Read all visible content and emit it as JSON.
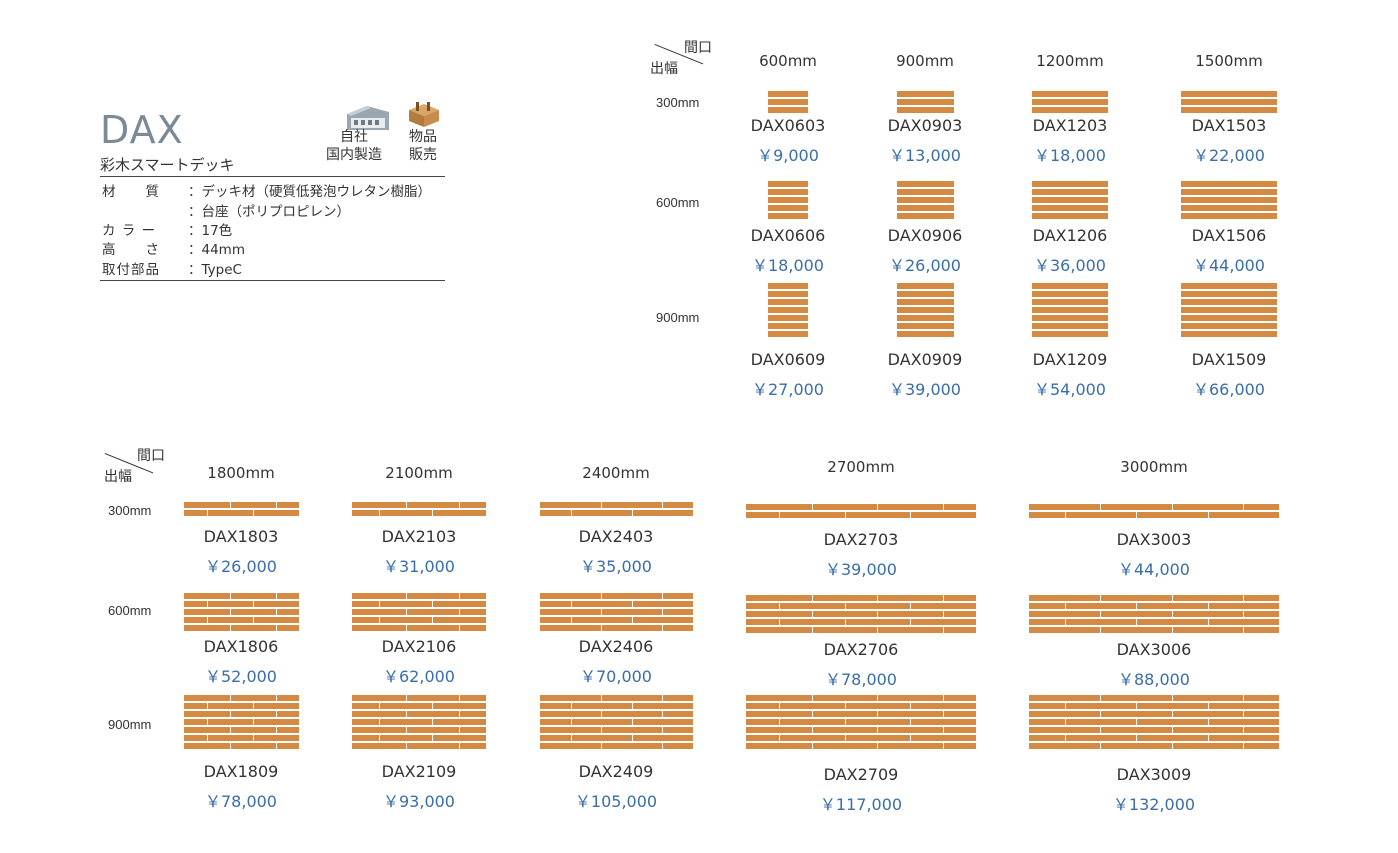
{
  "product": {
    "name": "DAX",
    "subtitle": "彩木スマートデッキ",
    "badges": {
      "factory": [
        "自社",
        "国内製造"
      ],
      "goods": [
        "物品",
        "販売"
      ]
    },
    "specs": [
      {
        "key": "材　　質",
        "value": "：デッキ材（硬質低発泡ウレタン樹脂）"
      },
      {
        "key": "",
        "value": "：台座（ポリプロピレン）"
      },
      {
        "key": "カ ラ ー",
        "value": "：17色"
      },
      {
        "key": "高　　さ",
        "value": "：44mm"
      },
      {
        "key": "取付部品",
        "value": "：TypeC"
      }
    ]
  },
  "table_header": {
    "width_label": "間口",
    "depth_label": "出幅"
  },
  "table1": {
    "columns": [
      "600mm",
      "900mm",
      "1200mm",
      "1500mm"
    ],
    "rows": [
      {
        "depth": "300mm",
        "items": [
          {
            "code": "DAX0603",
            "price": "￥9,000"
          },
          {
            "code": "DAX0903",
            "price": "￥13,000"
          },
          {
            "code": "DAX1203",
            "price": "￥18,000"
          },
          {
            "code": "DAX1503",
            "price": "￥22,000"
          }
        ]
      },
      {
        "depth": "600mm",
        "items": [
          {
            "code": "DAX0606",
            "price": "￥18,000"
          },
          {
            "code": "DAX0906",
            "price": "￥26,000"
          },
          {
            "code": "DAX1206",
            "price": "￥36,000"
          },
          {
            "code": "DAX1506",
            "price": "￥44,000"
          }
        ]
      },
      {
        "depth": "900mm",
        "items": [
          {
            "code": "DAX0609",
            "price": "￥27,000"
          },
          {
            "code": "DAX0909",
            "price": "￥39,000"
          },
          {
            "code": "DAX1209",
            "price": "￥54,000"
          },
          {
            "code": "DAX1509",
            "price": "￥66,000"
          }
        ]
      }
    ]
  },
  "table2": {
    "columns": [
      "1800mm",
      "2100mm",
      "2400mm",
      "2700mm",
      "3000mm"
    ],
    "rows": [
      {
        "depth": "300mm",
        "items": [
          {
            "code": "DAX1803",
            "price": "￥26,000"
          },
          {
            "code": "DAX2103",
            "price": "￥31,000"
          },
          {
            "code": "DAX2403",
            "price": "￥35,000"
          },
          {
            "code": "DAX2703",
            "price": "￥39,000"
          },
          {
            "code": "DAX3003",
            "price": "￥44,000"
          }
        ]
      },
      {
        "depth": "600mm",
        "items": [
          {
            "code": "DAX1806",
            "price": "￥52,000"
          },
          {
            "code": "DAX2106",
            "price": "￥62,000"
          },
          {
            "code": "DAX2406",
            "price": "￥70,000"
          },
          {
            "code": "DAX2706",
            "price": "￥78,000"
          },
          {
            "code": "DAX3006",
            "price": "￥88,000"
          }
        ]
      },
      {
        "depth": "900mm",
        "items": [
          {
            "code": "DAX1809",
            "price": "￥78,000"
          },
          {
            "code": "DAX2109",
            "price": "￥93,000"
          },
          {
            "code": "DAX2409",
            "price": "￥105,000"
          },
          {
            "code": "DAX2709",
            "price": "￥117,000"
          },
          {
            "code": "DAX3009",
            "price": "￥132,000"
          }
        ]
      }
    ]
  },
  "colors": {
    "plank": "#d48a43",
    "price": "#3a6ea8",
    "title": "#7a8a96"
  }
}
